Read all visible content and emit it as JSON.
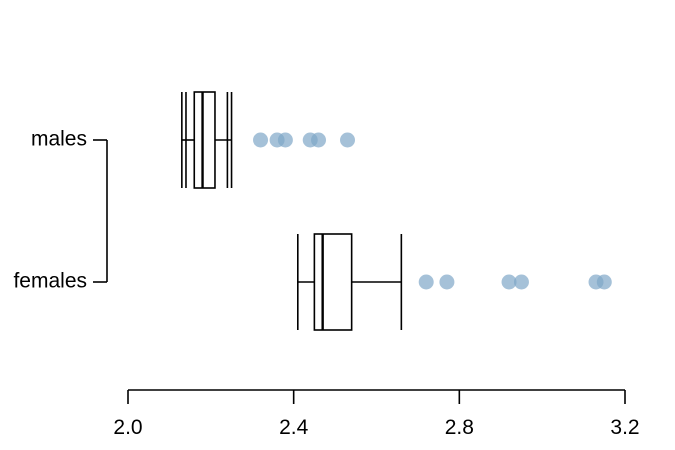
{
  "chart_data": {
    "type": "boxplot",
    "orientation": "horizontal",
    "title": "",
    "xlabel": "",
    "ylabel": "",
    "xlim": [
      2.0,
      3.2
    ],
    "x_ticks": [
      2.0,
      2.4,
      2.8,
      3.2
    ],
    "x_tick_labels": [
      "2.0",
      "2.4",
      "2.8",
      "3.2"
    ],
    "categories": [
      "males",
      "females"
    ],
    "point_color": "#7fa6c8",
    "series": [
      {
        "category": "males",
        "whisker_low": 2.13,
        "q1": 2.16,
        "median": 2.18,
        "q3": 2.21,
        "whisker_high": 2.25,
        "extra_lines": [
          2.14,
          2.24
        ],
        "outliers": [
          2.32,
          2.36,
          2.38,
          2.44,
          2.46,
          2.53
        ]
      },
      {
        "category": "females",
        "whisker_low": 2.41,
        "q1": 2.45,
        "median": 2.47,
        "q3": 2.54,
        "whisker_high": 2.66,
        "extra_lines": [],
        "outliers": [
          2.72,
          2.77,
          2.92,
          2.95,
          3.13,
          3.15
        ]
      }
    ]
  }
}
